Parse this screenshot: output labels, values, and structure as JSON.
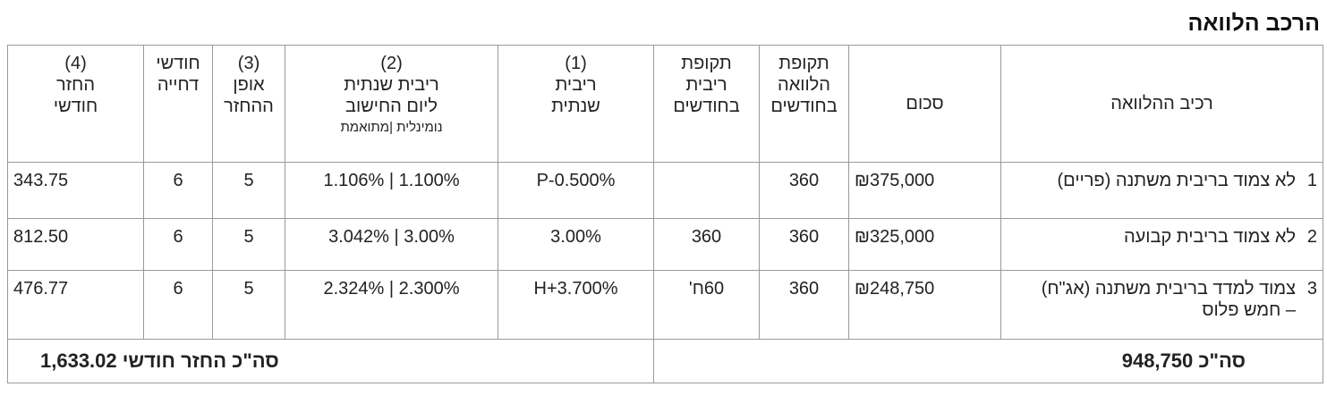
{
  "header": {
    "title": "הרכב הלוואה"
  },
  "table": {
    "columns": [
      [
        "רכיב ההלוואה"
      ],
      [
        "סכום"
      ],
      [
        "תקופת",
        "הלוואה",
        "בחודשים"
      ],
      [
        "תקופת",
        "ריבית",
        "בחודשים"
      ],
      [
        "(1)",
        "ריבית",
        "שנתית"
      ],
      [
        "(2)",
        "ריבית שנתית",
        "ליום החישוב",
        "נומינלית |מתואמת"
      ],
      [
        "(3)",
        "אופן",
        "ההחזר"
      ],
      [
        "חודשי",
        "דחייה"
      ],
      [
        "(4)",
        "החזר",
        "חודשי"
      ]
    ],
    "rows": [
      [
        "1",
        "לא צמוד בריבית משתנה (פריים)",
        "₪375,000",
        "360",
        null,
        "P-0.500%",
        "1.106% | 1.100%",
        "5",
        "6",
        "343.75"
      ],
      [
        "2",
        "לא צמוד בריבית קבועה",
        "₪325,000",
        "360",
        "360",
        "3.00%",
        "3.042% |  3.00%",
        "5",
        "6",
        "812.50"
      ],
      [
        "3",
        "צמוד למדד בריבית משתנה (אג\"ח) – חמש פלוס",
        "₪248,750",
        "360",
        "60ח'",
        "H+3.700%",
        "2.324% | 2.300%",
        "5",
        "6",
        "476.77"
      ]
    ],
    "footer": {
      "total_label": "סה\"כ",
      "total": "948,750",
      "monthly_label": "סה\"כ החזר חודשי",
      "monthly_total": "1,633.02"
    }
  }
}
